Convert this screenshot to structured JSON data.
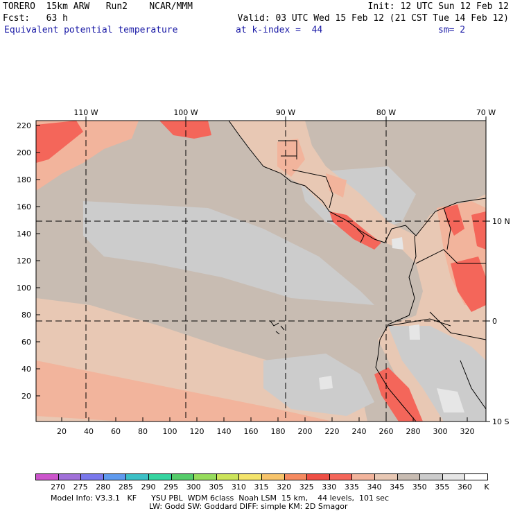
{
  "header": {
    "model_line": "TORERO  15km ARW   Run2    NCAR/MMM",
    "init_line": "Init: 12 UTC Sun 12 Feb 12",
    "fcst_line": "Fcst:   63 h",
    "valid_line": "Valid: 03 UTC Wed 15 Feb 12 (21 CST Tue 14 Feb 12)",
    "field_name": "Equivalent potential temperature",
    "level": "at k-index =  44",
    "smoothing": "sm= 2"
  },
  "map": {
    "top_lon_labels": [
      "110 W",
      "100 W",
      "90 W",
      "80 W",
      "70 W"
    ],
    "right_lat_labels": [
      "10 N",
      "0",
      "10 S"
    ],
    "y_grid_ticks": [
      "20",
      "40",
      "60",
      "80",
      "100",
      "120",
      "140",
      "160",
      "180",
      "200",
      "220"
    ],
    "x_grid_ticks": [
      "20",
      "40",
      "60",
      "80",
      "100",
      "120",
      "140",
      "160",
      "180",
      "200",
      "220",
      "240",
      "260",
      "280",
      "300",
      "320"
    ]
  },
  "colorbar": {
    "unit": "K",
    "levels": [
      "270",
      "275",
      "280",
      "285",
      "290",
      "295",
      "300",
      "305",
      "310",
      "315",
      "320",
      "325",
      "330",
      "335",
      "340",
      "345",
      "350",
      "355",
      "360"
    ],
    "colors": [
      "#cc55cc",
      "#a070d8",
      "#7a78ec",
      "#5f9aee",
      "#3cc0c6",
      "#35d4a0",
      "#55cc6a",
      "#96dc5c",
      "#cce45a",
      "#f4e46c",
      "#f7c46b",
      "#f58a60",
      "#ee4f45",
      "#f4665a",
      "#f2b49c",
      "#e8c8b4",
      "#c8bcb2",
      "#cccccc",
      "#e6e6e6",
      "#ffffff"
    ]
  },
  "footer": {
    "line1": "Model Info: V3.3.1   KF      YSU PBL  WDM 6class  Noah LSM  15 km,    44 levels,  101 sec",
    "line2": "LW: Godd SW: Goddard DIFF: simple KM: 2D Smagor"
  }
}
